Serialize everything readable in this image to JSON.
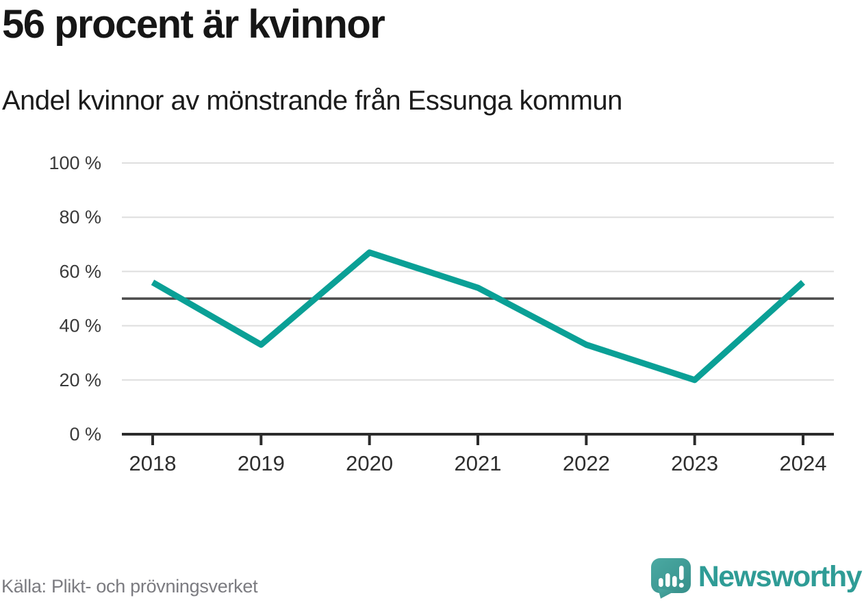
{
  "header": {
    "title": "56 procent är kvinnor",
    "subtitle": "Andel kvinnor av mönstrande från Essunga kommun"
  },
  "chart_data": {
    "type": "line",
    "title": "56 procent är kvinnor",
    "subtitle": "Andel kvinnor av mönstrande från Essunga kommun",
    "categories": [
      "2018",
      "2019",
      "2020",
      "2021",
      "2022",
      "2023",
      "2024"
    ],
    "series": [
      {
        "name": "Andel kvinnor av mönstrande",
        "values": [
          56,
          33,
          67,
          54,
          33,
          20,
          56
        ]
      }
    ],
    "ylim": [
      0,
      100
    ],
    "yticks": [
      0,
      20,
      40,
      60,
      80,
      100
    ],
    "ytick_labels": [
      "0 %",
      "20 %",
      "40 %",
      "60 %",
      "80 %",
      "100 %"
    ],
    "reference_line": 50,
    "grid": true,
    "legend": false,
    "xlabel": "",
    "ylabel": "",
    "colors": {
      "line": "#0aa096",
      "reference": "#4a4a4a",
      "axis": "#2b2b2b",
      "grid": "#dedede",
      "ytick_text": "#3a3a3a",
      "xtick_text": "#2e2e2e"
    }
  },
  "footer": {
    "source": "Källa: Plikt- och prövningsverket",
    "brand": "Newsworthy",
    "brand_color": "#2f9c96",
    "logo_teal_light": "#4aa9a2",
    "logo_teal_dark": "#37908b"
  }
}
